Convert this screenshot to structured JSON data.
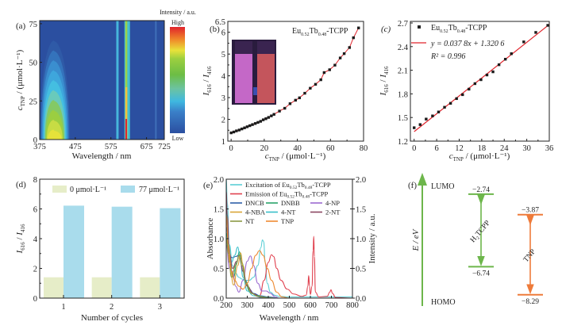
{
  "figure": {
    "panels": [
      "(a)",
      "(b)",
      "(c)",
      "(d)",
      "(e)",
      "(f)"
    ]
  },
  "chart_data": [
    {
      "id": "a",
      "type": "heatmap",
      "panel_label": "(a)",
      "xlabel": "Wavelength / nm",
      "ylabel": "c_TNP / (μmol·L⁻¹)",
      "ylabel_main": "c",
      "ylabel_sub": "TNP",
      "ylabel_rest": " / (μmol·L⁻¹)",
      "xlim": [
        375,
        725
      ],
      "ylim": [
        0,
        77
      ],
      "xticks": [
        375,
        475,
        575,
        675,
        725
      ],
      "yticks": [
        0,
        25,
        50,
        75
      ],
      "colorbar": {
        "title": "Intensity / a.u.",
        "high": "High",
        "low": "Low"
      },
      "features": [
        {
          "name": "porphyrin-band",
          "center_nm": 416,
          "peak_at_c0": 0.55,
          "decays_to_zero_at_c": 70
        },
        {
          "name": "eu-line-592",
          "center_nm": 592,
          "level": 0.35
        },
        {
          "name": "eu-line-616",
          "center_nm": 616,
          "level_low_c": 0.9,
          "level_high_c": 0.55
        },
        {
          "name": "eu-line-700",
          "center_nm": 700,
          "level": 0.12
        }
      ]
    },
    {
      "id": "b",
      "type": "line",
      "panel_label": "(b)",
      "legend": "Eu0.52Tb0.48-TCPP",
      "legend_parts": {
        "a": "Eu",
        "a_sub": "0.52",
        "b": "Tb",
        "b_sub": "0.48",
        "c": "-TCPP"
      },
      "xlabel": "c_TNP / (μmol·L⁻¹)",
      "ylabel": "I616 / I416",
      "xlim": [
        -2,
        80
      ],
      "ylim": [
        1,
        6.5
      ],
      "xticks": [
        0,
        20,
        40,
        60,
        80
      ],
      "yticks": [
        1,
        2,
        3,
        4,
        5,
        6,
        6.5
      ],
      "inset": "photo of two cuvettes (pink, red)",
      "x": [
        0,
        1.6,
        3.2,
        4.9,
        6.5,
        8.1,
        9.7,
        11.3,
        12.9,
        14.6,
        16.2,
        17.8,
        19.4,
        21.0,
        22.6,
        24.3,
        25.9,
        29.2,
        32.4,
        35.6,
        38.9,
        41.3,
        44.5,
        47.8,
        51.0,
        54.2,
        56.2,
        59.5,
        62.7,
        65.9,
        68.3,
        71.5,
        73.9,
        77.0
      ],
      "y": [
        1.38,
        1.42,
        1.47,
        1.51,
        1.56,
        1.61,
        1.66,
        1.71,
        1.76,
        1.81,
        1.86,
        1.91,
        1.98,
        2.03,
        2.09,
        2.16,
        2.23,
        2.38,
        2.51,
        2.72,
        2.88,
        2.99,
        3.2,
        3.43,
        3.61,
        3.82,
        4.15,
        4.28,
        4.49,
        4.82,
        5.02,
        5.3,
        5.75,
        6.2
      ]
    },
    {
      "id": "c",
      "type": "scatter",
      "panel_label": "(c)",
      "legend_points": "Eu0.52Tb0.48-TCPP",
      "legend_parts": {
        "a": "Eu",
        "a_sub": "0.52",
        "b": "Tb",
        "b_sub": "0.48",
        "c": "-TCPP"
      },
      "fit_label": "y = 0.037 8x + 1.320 6",
      "r2_label": "R² = 0.996",
      "fit": {
        "slope": 0.0378,
        "intercept": 1.3206
      },
      "xlabel": "c_TNP / (μmol·L⁻¹)",
      "ylabel": "I616 / I416",
      "xlim": [
        -1,
        36
      ],
      "ylim": [
        1.2,
        2.72
      ],
      "xticks": [
        0,
        6,
        12,
        18,
        24,
        30,
        36
      ],
      "yticks": [
        1.2,
        1.5,
        1.8,
        2.1,
        2.4,
        2.7
      ],
      "x": [
        0,
        1.6,
        3.2,
        4.9,
        6.5,
        8.1,
        9.7,
        11.3,
        12.9,
        14.6,
        16.2,
        17.8,
        19.4,
        21.0,
        22.6,
        24.3,
        25.9,
        29.2,
        32.4,
        35.6
      ],
      "y": [
        1.37,
        1.41,
        1.48,
        1.52,
        1.57,
        1.63,
        1.68,
        1.74,
        1.79,
        1.86,
        1.93,
        1.98,
        2.04,
        2.08,
        2.17,
        2.24,
        2.31,
        2.46,
        2.58,
        2.67
      ]
    },
    {
      "id": "d",
      "type": "bar",
      "panel_label": "(d)",
      "xlabel": "Number of cycles",
      "ylabel": "I616 / I416",
      "categories": [
        "1",
        "2",
        "3"
      ],
      "ylim": [
        0,
        8
      ],
      "yticks": [
        0,
        2,
        4,
        6,
        8
      ],
      "series": [
        {
          "name": "0 μmol·L⁻¹",
          "color": "#e6edc8",
          "values": [
            1.4,
            1.4,
            1.4
          ]
        },
        {
          "name": "77 μmol·L⁻¹",
          "color": "#a9dcec",
          "values": [
            6.22,
            6.15,
            6.05
          ]
        }
      ]
    },
    {
      "id": "e",
      "type": "line",
      "panel_label": "(e)",
      "xlabel": "Wavelength / nm",
      "ylabel": "Absorbance",
      "ylabel_right": "Intensity / a.u.",
      "xlim": [
        200,
        800
      ],
      "ylim": [
        0,
        2.0
      ],
      "ylim_right": [
        0,
        2.0
      ],
      "xticks": [
        200,
        300,
        400,
        500,
        600,
        700,
        800
      ],
      "yticks": [
        0.0,
        0.5,
        1.0,
        1.5,
        2.0
      ],
      "yticks_right": [
        0.0,
        0.5,
        1.0,
        1.5,
        2.0
      ],
      "legend": [
        {
          "name": "Excitation of Eu0.52Tb0.48-TCPP",
          "color": "#5ccfd6"
        },
        {
          "name": "Emission of Eu0.52Tb0.48-TCPP",
          "color": "#e0404e"
        },
        {
          "name": "DNCB",
          "color": "#2e5fa8"
        },
        {
          "name": "DNBB",
          "color": "#2aa36b"
        },
        {
          "name": "4-NP",
          "color": "#9b6ad0"
        },
        {
          "name": "4-NBA",
          "color": "#d9a437"
        },
        {
          "name": "4-NT",
          "color": "#38bfc9"
        },
        {
          "name": "2-NT",
          "color": "#8a4560"
        },
        {
          "name": "NT",
          "color": "#8c9a45"
        },
        {
          "name": "TNP",
          "color": "#ee8a32"
        }
      ],
      "series": [
        {
          "name": "Excitation",
          "x": [
            200,
            205,
            215,
            230,
            245,
            260,
            275,
            290,
            310,
            330,
            350,
            365,
            372,
            378,
            385,
            395,
            410,
            430,
            450,
            500,
            600,
            800
          ],
          "y": [
            2.0,
            1.6,
            0.9,
            0.55,
            0.42,
            0.35,
            0.32,
            0.3,
            0.3,
            0.35,
            0.55,
            0.85,
            0.98,
            0.95,
            0.6,
            0.25,
            0.1,
            0.05,
            0.03,
            0.02,
            0.02,
            0.02
          ]
        },
        {
          "name": "Emission",
          "x": [
            360,
            380,
            400,
            415,
            425,
            440,
            460,
            490,
            520,
            560,
            580,
            588,
            592,
            596,
            600,
            608,
            613,
            616,
            619,
            624,
            640,
            680,
            692,
            698,
            705,
            720,
            800
          ],
          "y": [
            0.05,
            0.3,
            0.6,
            0.73,
            0.7,
            0.5,
            0.3,
            0.15,
            0.07,
            0.03,
            0.05,
            0.2,
            0.38,
            0.2,
            0.06,
            0.2,
            0.8,
            1.04,
            0.7,
            0.1,
            0.02,
            0.03,
            0.1,
            0.14,
            0.08,
            0.01,
            0.0
          ]
        },
        {
          "name": "DNCB",
          "x": [
            200,
            215,
            230,
            245,
            260,
            275,
            290,
            310,
            330,
            360,
            400,
            450
          ],
          "y": [
            1.2,
            0.7,
            0.68,
            0.7,
            0.72,
            0.55,
            0.3,
            0.15,
            0.08,
            0.04,
            0.02,
            0.0
          ]
        },
        {
          "name": "DNBB",
          "x": [
            200,
            215,
            235,
            250,
            262,
            275,
            290,
            310,
            340,
            380,
            430
          ],
          "y": [
            1.1,
            0.6,
            0.35,
            0.6,
            0.78,
            0.6,
            0.3,
            0.12,
            0.05,
            0.02,
            0.0
          ]
        },
        {
          "name": "4-NP",
          "x": [
            200,
            215,
            230,
            245,
            260,
            280,
            300,
            315,
            330,
            350,
            370,
            390,
            410,
            430,
            450
          ],
          "y": [
            0.9,
            0.5,
            0.45,
            0.2,
            0.1,
            0.3,
            0.62,
            0.71,
            0.55,
            0.25,
            0.12,
            0.12,
            0.08,
            0.03,
            0.0
          ]
        },
        {
          "name": "4-NBA",
          "x": [
            200,
            215,
            235,
            255,
            268,
            280,
            295,
            320,
            350,
            390,
            430
          ],
          "y": [
            1.5,
            0.6,
            0.22,
            0.55,
            0.76,
            0.55,
            0.25,
            0.08,
            0.03,
            0.01,
            0.0
          ]
        },
        {
          "name": "4-NT",
          "x": [
            200,
            212,
            225,
            240,
            255,
            265,
            280,
            300,
            330,
            370,
            420
          ],
          "y": [
            1.5,
            0.9,
            0.6,
            0.72,
            0.86,
            0.7,
            0.35,
            0.12,
            0.04,
            0.01,
            0.0
          ]
        },
        {
          "name": "2-NT",
          "x": [
            200,
            205,
            215,
            230,
            250,
            262,
            280,
            300,
            330,
            360,
            400
          ],
          "y": [
            1.8,
            1.4,
            0.75,
            0.5,
            0.62,
            0.72,
            0.45,
            0.2,
            0.07,
            0.02,
            0.0
          ]
        },
        {
          "name": "NT",
          "x": [
            200,
            210,
            225,
            245,
            262,
            275,
            295,
            320,
            350,
            400
          ],
          "y": [
            1.0,
            0.75,
            0.35,
            0.55,
            0.72,
            0.55,
            0.25,
            0.08,
            0.03,
            0.0
          ]
        },
        {
          "name": "TNP",
          "x": [
            200,
            210,
            225,
            240,
            260,
            280,
            300,
            320,
            340,
            358,
            375,
            395,
            415,
            440,
            465,
            500
          ],
          "y": [
            1.4,
            0.9,
            0.45,
            0.3,
            0.2,
            0.15,
            0.25,
            0.5,
            0.72,
            0.8,
            0.72,
            0.5,
            0.3,
            0.1,
            0.02,
            0.0
          ]
        }
      ]
    },
    {
      "id": "f",
      "type": "diagram",
      "panel_label": "(f)",
      "axis_label": "E / eV",
      "top_label": "LUMO",
      "bottom_label": "HOMO",
      "levels": [
        {
          "name": "H2TCPP",
          "label": "H₂TCPP",
          "lumo": -2.74,
          "homo": -6.74,
          "lumo_text": "−2.74",
          "homo_text": "−6.74",
          "color": "#6db64b"
        },
        {
          "name": "TNP",
          "label": "TNP",
          "lumo": -3.87,
          "homo": -8.29,
          "lumo_text": "−3.87",
          "homo_text": "−8.29",
          "color": "#ee7b3a"
        }
      ]
    }
  ]
}
